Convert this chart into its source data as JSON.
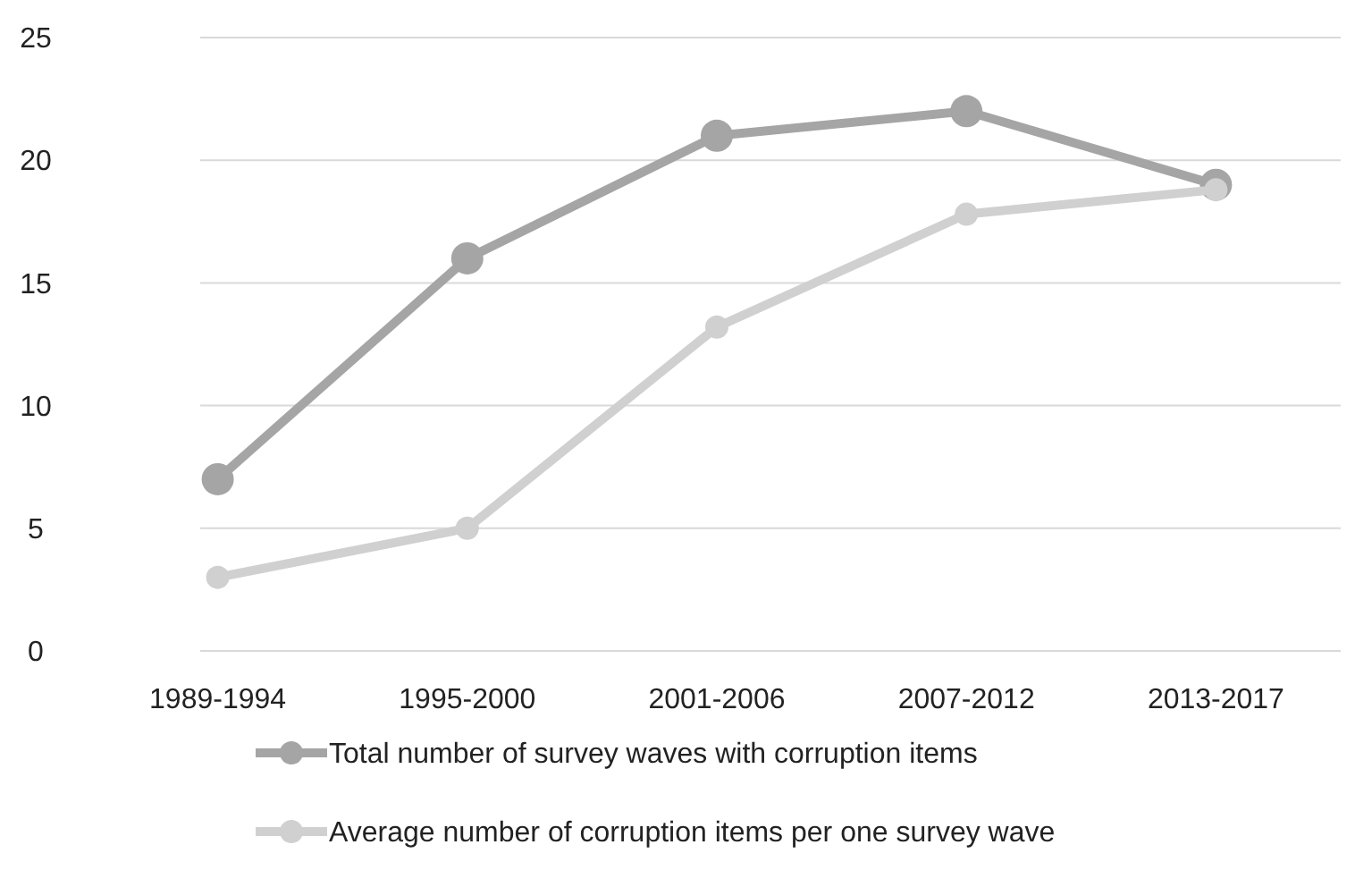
{
  "chart_data": {
    "type": "line",
    "categories": [
      "1989-1994",
      "1995-2000",
      "2001-2006",
      "2007-2012",
      "2013-2017"
    ],
    "series": [
      {
        "name": "Total number of survey waves with corruption items",
        "color": "#a5a5a5",
        "values": [
          7,
          16,
          21,
          22,
          19
        ]
      },
      {
        "name": "Average number of corruption items per one survey wave",
        "color": "#d0d0d0",
        "values": [
          3,
          5,
          13.2,
          17.8,
          18.8
        ]
      }
    ],
    "ylim": [
      0,
      25
    ],
    "yticks": [
      0,
      5,
      10,
      15,
      20,
      25
    ],
    "grid": "y",
    "legend": "bottom",
    "marker": "circle",
    "line_style": "solid"
  }
}
